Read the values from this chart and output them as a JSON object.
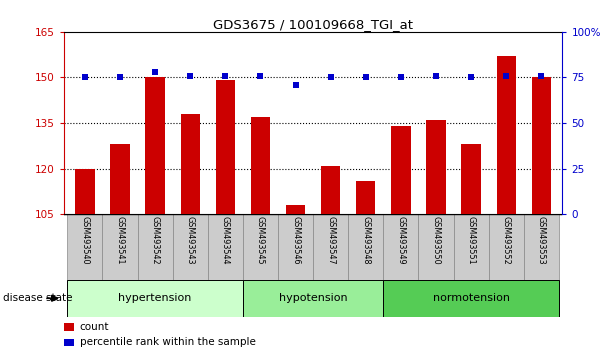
{
  "title": "GDS3675 / 100109668_TGI_at",
  "samples": [
    "GSM493540",
    "GSM493541",
    "GSM493542",
    "GSM493543",
    "GSM493544",
    "GSM493545",
    "GSM493546",
    "GSM493547",
    "GSM493548",
    "GSM493549",
    "GSM493550",
    "GSM493551",
    "GSM493552",
    "GSM493553"
  ],
  "counts": [
    120,
    128,
    150,
    138,
    149,
    137,
    108,
    121,
    116,
    134,
    136,
    128,
    157,
    150
  ],
  "percentiles": [
    75,
    75,
    78,
    76,
    76,
    76,
    71,
    75,
    75,
    75,
    76,
    75,
    76,
    76
  ],
  "groups": [
    {
      "label": "hypertension",
      "start": 0,
      "end": 5,
      "color": "#ccffcc"
    },
    {
      "label": "hypotension",
      "start": 5,
      "end": 9,
      "color": "#99ee99"
    },
    {
      "label": "normotension",
      "start": 9,
      "end": 14,
      "color": "#55cc55"
    }
  ],
  "ylim_left": [
    105,
    165
  ],
  "ylim_right": [
    0,
    100
  ],
  "yticks_left": [
    105,
    120,
    135,
    150,
    165
  ],
  "yticks_right": [
    0,
    25,
    50,
    75,
    100
  ],
  "bar_color": "#cc0000",
  "dot_color": "#0000cc",
  "background_color": "#ffffff",
  "plot_bg": "#ffffff",
  "legend_count_color": "#cc0000",
  "legend_pct_color": "#0000cc",
  "xtick_box_color": "#cccccc",
  "xtick_box_edge": "#888888"
}
